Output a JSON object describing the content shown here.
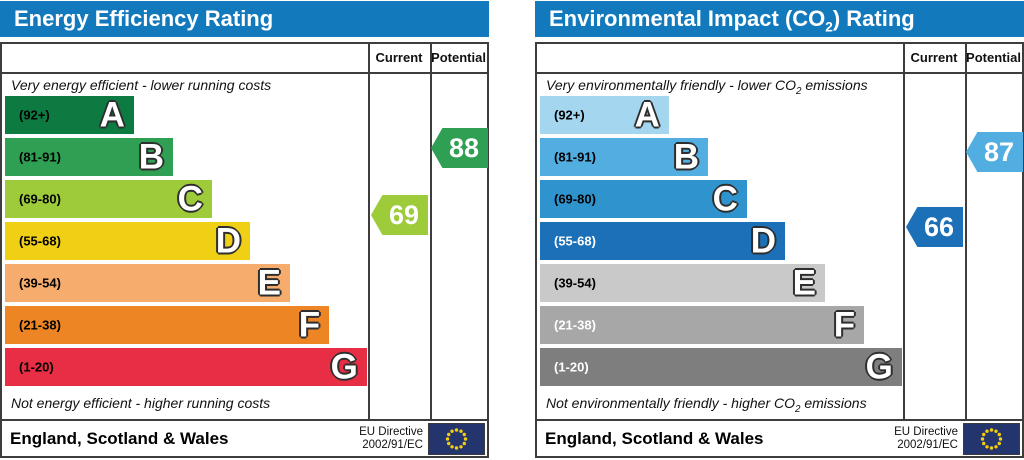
{
  "eu_flag": {
    "bg": "#24356d",
    "stars": "#f3cd0e"
  },
  "chart_data": {
    "type": "bar",
    "charts": [
      {
        "title": {
          "pre": "Energy Efficiency Rating",
          "sub": "",
          "post": ""
        },
        "header_bg": "#1379bd",
        "columns": {
          "current": "Current",
          "potential": "Potential"
        },
        "top_caption": {
          "pre": "Very energy efficient - lower running costs",
          "sub": "",
          "post": ""
        },
        "bottom_caption": {
          "pre": "Not energy efficient - higher running costs",
          "sub": "",
          "post": ""
        },
        "bands": [
          {
            "letter": "A",
            "range": "(92+)",
            "min": 92,
            "max": 100,
            "color": "#0d7b41",
            "label_color": "#000000",
            "width_pct": "35.5%"
          },
          {
            "letter": "B",
            "range": "(81-91)",
            "min": 81,
            "max": 91,
            "color": "#2fa053",
            "label_color": "#000000",
            "width_pct": "46.3%"
          },
          {
            "letter": "C",
            "range": "(69-80)",
            "min": 69,
            "max": 80,
            "color": "#9ecb3a",
            "label_color": "#000000",
            "width_pct": "57.0%"
          },
          {
            "letter": "D",
            "range": "(55-68)",
            "min": 55,
            "max": 68,
            "color": "#f0d015",
            "label_color": "#000000",
            "width_pct": "67.5%"
          },
          {
            "letter": "E",
            "range": "(39-54)",
            "min": 39,
            "max": 54,
            "color": "#f6ac6d",
            "label_color": "#000000",
            "width_pct": "78.5%"
          },
          {
            "letter": "F",
            "range": "(21-38)",
            "min": 21,
            "max": 38,
            "color": "#ee8524",
            "label_color": "#000000",
            "width_pct": "89.3%"
          },
          {
            "letter": "G",
            "range": "(1-20)",
            "min": 1,
            "max": 20,
            "color": "#e72e44",
            "label_color": "#000000",
            "width_pct": "99.7%"
          }
        ],
        "markers": {
          "current": {
            "value": 69,
            "band": "C",
            "color": "#9ecb3a"
          },
          "potential": {
            "value": 88,
            "band": "B",
            "color": "#2fa053"
          }
        },
        "footer": {
          "region": "England, Scotland & Wales",
          "directive_line1": "EU Directive",
          "directive_line2": "2002/91/EC",
          "flag_icon": "eu-flag"
        }
      },
      {
        "title": {
          "pre": "Environmental Impact (CO",
          "sub": "2",
          "post": ") Rating"
        },
        "header_bg": "#1379bd",
        "columns": {
          "current": "Current",
          "potential": "Potential"
        },
        "top_caption": {
          "pre": "Very environmentally friendly - lower CO",
          "sub": "2",
          "post": " emissions"
        },
        "bottom_caption": {
          "pre": "Not environmentally friendly - higher CO",
          "sub": "2",
          "post": " emissions"
        },
        "bands": [
          {
            "letter": "A",
            "range": "(92+)",
            "min": 92,
            "max": 100,
            "color": "#a4d6f0",
            "label_color": "#000000",
            "width_pct": "35.5%"
          },
          {
            "letter": "B",
            "range": "(81-91)",
            "min": 81,
            "max": 91,
            "color": "#52ade0",
            "label_color": "#000000",
            "width_pct": "46.3%"
          },
          {
            "letter": "C",
            "range": "(69-80)",
            "min": 69,
            "max": 80,
            "color": "#2f93cd",
            "label_color": "#000000",
            "width_pct": "57.0%"
          },
          {
            "letter": "D",
            "range": "(55-68)",
            "min": 55,
            "max": 68,
            "color": "#1b70b8",
            "label_color": "#ffffff",
            "width_pct": "67.5%"
          },
          {
            "letter": "E",
            "range": "(39-54)",
            "min": 39,
            "max": 54,
            "color": "#c9c9c9",
            "label_color": "#000000",
            "width_pct": "78.5%"
          },
          {
            "letter": "F",
            "range": "(21-38)",
            "min": 21,
            "max": 38,
            "color": "#a7a7a7",
            "label_color": "#ffffff",
            "width_pct": "89.3%"
          },
          {
            "letter": "G",
            "range": "(1-20)",
            "min": 1,
            "max": 20,
            "color": "#7e7e7e",
            "label_color": "#ffffff",
            "width_pct": "99.7%"
          }
        ],
        "markers": {
          "current": {
            "value": 66,
            "band": "D",
            "color": "#1b70b8"
          },
          "potential": {
            "value": 87,
            "band": "B",
            "color": "#52ade0"
          }
        },
        "footer": {
          "region": "England, Scotland & Wales",
          "directive_line1": "EU Directive",
          "directive_line2": "2002/91/EC",
          "flag_icon": "eu-flag"
        }
      }
    ]
  }
}
